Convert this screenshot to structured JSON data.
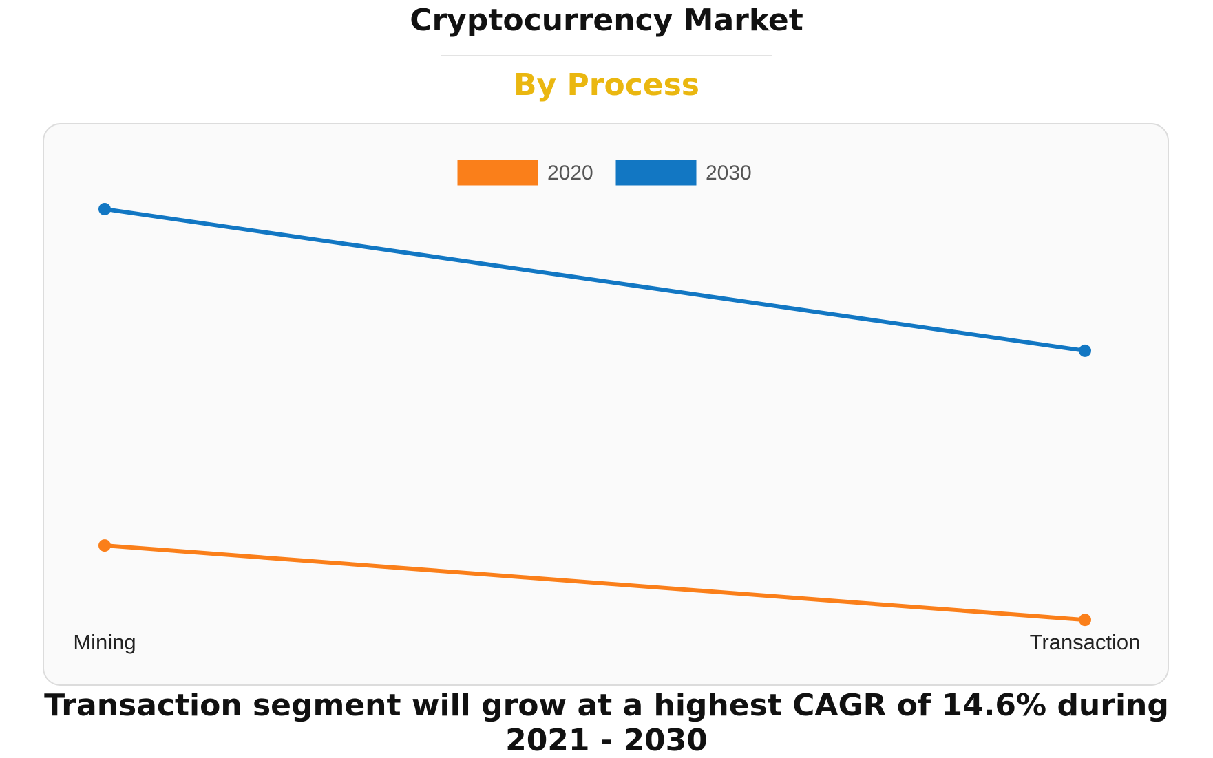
{
  "header": {
    "title": "Cryptocurrency Market",
    "subtitle": "By Process"
  },
  "colors": {
    "subtitle": "#eab710",
    "series_2020": "#fa7f1a",
    "series_2030": "#1277c3"
  },
  "footer": {
    "text": "Transaction segment will grow at a highest CAGR of 14.6% during 2021 - 2030"
  },
  "chart_data": {
    "type": "line",
    "categories": [
      "Mining",
      "Transaction"
    ],
    "series": [
      {
        "name": "2020",
        "values": [
          40,
          19
        ],
        "color": "#fa7f1a"
      },
      {
        "name": "2030",
        "values": [
          135,
          95
        ],
        "color": "#1277c3"
      }
    ],
    "ylim": [
      0,
      155
    ],
    "grid": false,
    "legend": "top-center",
    "xlabel": "",
    "ylabel": ""
  }
}
